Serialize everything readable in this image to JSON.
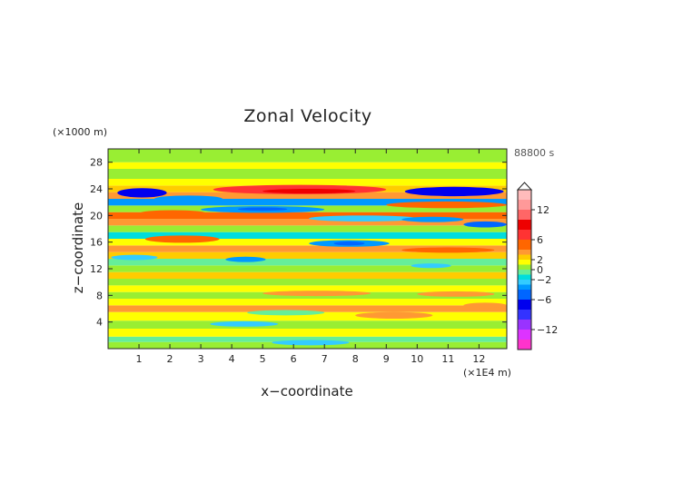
{
  "chart_data": {
    "type": "heatmap",
    "title": "Zonal Velocity",
    "xlabel": "x−coordinate",
    "ylabel": "z−coordinate",
    "x_unit": "(×1E4 m)",
    "y_unit": "(×1000 m)",
    "time_label": "88800 s",
    "xlim": [
      0,
      12.9
    ],
    "ylim": [
      0,
      30
    ],
    "x_ticks": [
      1,
      2,
      3,
      4,
      5,
      6,
      7,
      8,
      9,
      10,
      11,
      12
    ],
    "y_ticks": [
      4,
      8,
      12,
      16,
      20,
      24,
      28
    ],
    "colorbar": {
      "range": [
        -16,
        16
      ],
      "tick_values": [
        12,
        6,
        2,
        0,
        -2,
        -6,
        -12
      ],
      "tick_labels": [
        "12",
        "6",
        "2",
        "0",
        "−2",
        "−6",
        "−12"
      ],
      "levels": [
        {
          "min": -16,
          "max": -14,
          "color": "#ff33cc"
        },
        {
          "min": -14,
          "max": -12,
          "color": "#dd33ff"
        },
        {
          "min": -12,
          "max": -10,
          "color": "#9933ff"
        },
        {
          "min": -10,
          "max": -8,
          "color": "#3333ff"
        },
        {
          "min": -8,
          "max": -6,
          "color": "#0000ee"
        },
        {
          "min": -6,
          "max": -4,
          "color": "#0066ff"
        },
        {
          "min": -4,
          "max": -3,
          "color": "#0099ff"
        },
        {
          "min": -3,
          "max": -2,
          "color": "#33ccff"
        },
        {
          "min": -2,
          "max": -1,
          "color": "#00dddd"
        },
        {
          "min": -1,
          "max": 0,
          "color": "#66ee99"
        },
        {
          "min": 0,
          "max": 1,
          "color": "#99ee33"
        },
        {
          "min": 1,
          "max": 2,
          "color": "#ffff00"
        },
        {
          "min": 2,
          "max": 3,
          "color": "#ffcc00"
        },
        {
          "min": 3,
          "max": 4,
          "color": "#ff9933"
        },
        {
          "min": 4,
          "max": 6,
          "color": "#ff6600"
        },
        {
          "min": 6,
          "max": 8,
          "color": "#ff3333"
        },
        {
          "min": 8,
          "max": 10,
          "color": "#ee0000"
        },
        {
          "min": 10,
          "max": 12,
          "color": "#ff6666"
        },
        {
          "min": 12,
          "max": 14,
          "color": "#ff9999"
        },
        {
          "min": 14,
          "max": 16,
          "color": "#ffbbbb"
        }
      ]
    },
    "bands": [
      {
        "y_min": 0,
        "y_max": 1,
        "value": 0.5
      },
      {
        "y_min": 1,
        "y_max": 1.8,
        "value": -0.6
      },
      {
        "y_min": 1.8,
        "y_max": 3,
        "value": 1.4
      },
      {
        "y_min": 3,
        "y_max": 4.2,
        "value": 0.5
      },
      {
        "y_min": 4.2,
        "y_max": 5.5,
        "value": 1.5
      },
      {
        "y_min": 5.5,
        "y_max": 6.5,
        "value": 3.4
      },
      {
        "y_min": 6.5,
        "y_max": 7.5,
        "value": 1.5
      },
      {
        "y_min": 7.5,
        "y_max": 8.5,
        "value": 0.6
      },
      {
        "y_min": 8.5,
        "y_max": 9.5,
        "value": 1.5
      },
      {
        "y_min": 9.5,
        "y_max": 10.5,
        "value": 0.6
      },
      {
        "y_min": 10.5,
        "y_max": 11.5,
        "value": 2.5
      },
      {
        "y_min": 11.5,
        "y_max": 12.5,
        "value": 0.5
      },
      {
        "y_min": 12.5,
        "y_max": 13.5,
        "value": -0.5
      },
      {
        "y_min": 13.5,
        "y_max": 14.5,
        "value": 2.5
      },
      {
        "y_min": 14.5,
        "y_max": 15.5,
        "value": 3.6
      },
      {
        "y_min": 15.5,
        "y_max": 16.5,
        "value": 1.5
      },
      {
        "y_min": 16.5,
        "y_max": 17.5,
        "value": -1.5
      },
      {
        "y_min": 17.5,
        "y_max": 18.5,
        "value": 0.5
      },
      {
        "y_min": 18.5,
        "y_max": 19.5,
        "value": 3.2
      },
      {
        "y_min": 19.5,
        "y_max": 20.5,
        "value": 4.5
      },
      {
        "y_min": 20.5,
        "y_max": 21.5,
        "value": 0.4
      },
      {
        "y_min": 21.5,
        "y_max": 22.5,
        "value": -3.5
      },
      {
        "y_min": 22.5,
        "y_max": 23.5,
        "value": 3.5
      },
      {
        "y_min": 23.5,
        "y_max": 24.5,
        "value": 2.5
      },
      {
        "y_min": 24.5,
        "y_max": 25.5,
        "value": 1.5
      },
      {
        "y_min": 25.5,
        "y_max": 27,
        "value": 0.6
      },
      {
        "y_min": 27,
        "y_max": 28,
        "value": 1.4
      },
      {
        "y_min": 28,
        "y_max": 30,
        "value": 0.5
      }
    ],
    "features": [
      {
        "x": 0.3,
        "y": 22.7,
        "w": 1.6,
        "h": 1.4,
        "value": -7
      },
      {
        "x": 1.5,
        "y": 22.0,
        "w": 2.2,
        "h": 1.0,
        "value": -3.5
      },
      {
        "x": 3.4,
        "y": 23.2,
        "w": 5.6,
        "h": 1.4,
        "value": 6
      },
      {
        "x": 5.0,
        "y": 23.3,
        "w": 3.0,
        "h": 0.7,
        "value": 8
      },
      {
        "x": 9.6,
        "y": 22.9,
        "w": 3.2,
        "h": 1.4,
        "value": -7
      },
      {
        "x": 9.0,
        "y": 21.1,
        "w": 3.9,
        "h": 1.0,
        "value": 5
      },
      {
        "x": 1.0,
        "y": 19.8,
        "w": 2.2,
        "h": 1.0,
        "value": 5
      },
      {
        "x": 3.0,
        "y": 20.4,
        "w": 4.0,
        "h": 1.0,
        "value": -3.5
      },
      {
        "x": 4.2,
        "y": 20.7,
        "w": 1.6,
        "h": 0.5,
        "value": -5
      },
      {
        "x": 6.5,
        "y": 19.1,
        "w": 3.5,
        "h": 0.9,
        "value": -2.5
      },
      {
        "x": 9.5,
        "y": 19.0,
        "w": 2.0,
        "h": 0.8,
        "value": -3.5
      },
      {
        "x": 11.5,
        "y": 18.2,
        "w": 1.4,
        "h": 0.9,
        "value": -5
      },
      {
        "x": 1.2,
        "y": 15.9,
        "w": 2.4,
        "h": 1.1,
        "value": 5
      },
      {
        "x": 6.5,
        "y": 15.3,
        "w": 2.6,
        "h": 1.0,
        "value": -3.5
      },
      {
        "x": 7.3,
        "y": 15.5,
        "w": 1.0,
        "h": 0.6,
        "value": -5
      },
      {
        "x": 9.5,
        "y": 14.4,
        "w": 3.0,
        "h": 0.8,
        "value": 5
      },
      {
        "x": 0.1,
        "y": 13.3,
        "w": 1.5,
        "h": 0.8,
        "value": -2.5
      },
      {
        "x": 3.8,
        "y": 13.0,
        "w": 1.3,
        "h": 0.8,
        "value": -3.5
      },
      {
        "x": 9.8,
        "y": 12.1,
        "w": 1.3,
        "h": 0.7,
        "value": -2.5
      },
      {
        "x": 5.0,
        "y": 7.9,
        "w": 3.5,
        "h": 0.8,
        "value": 3.2
      },
      {
        "x": 10.0,
        "y": 7.8,
        "w": 2.5,
        "h": 0.8,
        "value": 3.2
      },
      {
        "x": 4.5,
        "y": 5.0,
        "w": 2.5,
        "h": 0.8,
        "value": -0.7
      },
      {
        "x": 3.3,
        "y": 3.3,
        "w": 2.2,
        "h": 0.8,
        "value": -2.5
      },
      {
        "x": 8.0,
        "y": 4.5,
        "w": 2.5,
        "h": 1.0,
        "value": 3.3
      },
      {
        "x": 11.5,
        "y": 6.1,
        "w": 1.4,
        "h": 0.8,
        "value": 3.3
      },
      {
        "x": 5.3,
        "y": 0.5,
        "w": 2.5,
        "h": 0.8,
        "value": -2.5
      }
    ]
  }
}
